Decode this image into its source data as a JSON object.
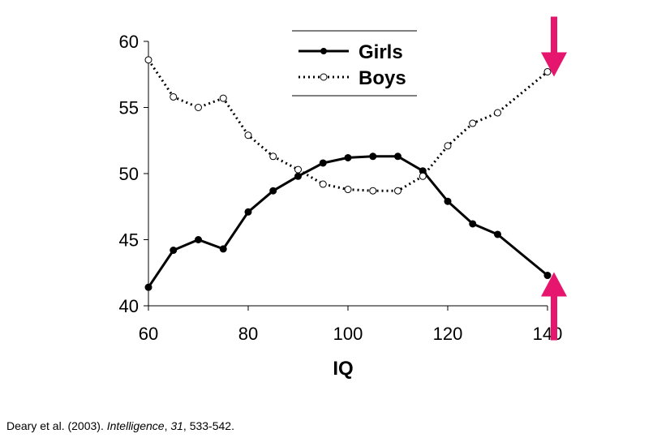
{
  "chart_data": {
    "type": "line",
    "xlabel": "IQ",
    "ylabel": "",
    "xlim": [
      60,
      140
    ],
    "ylim": [
      40,
      60
    ],
    "xticks": [
      60,
      80,
      100,
      120,
      140
    ],
    "yticks": [
      40,
      45,
      50,
      55,
      60
    ],
    "x": [
      60,
      65,
      70,
      75,
      80,
      85,
      90,
      95,
      100,
      105,
      110,
      115,
      120,
      125,
      130,
      140
    ],
    "series": [
      {
        "name": "Girls",
        "color": "#000000",
        "style": "solid-filled-markers",
        "values": [
          41.4,
          44.2,
          45.0,
          44.3,
          47.1,
          48.7,
          49.8,
          50.8,
          51.2,
          51.3,
          51.3,
          50.2,
          47.9,
          46.2,
          45.4,
          42.3
        ]
      },
      {
        "name": "Boys",
        "color": "#000000",
        "style": "dotted-open-markers",
        "values": [
          58.6,
          55.8,
          55.0,
          55.7,
          52.9,
          51.3,
          50.3,
          49.2,
          48.8,
          48.7,
          48.7,
          49.8,
          52.1,
          53.8,
          54.6,
          57.7
        ]
      }
    ],
    "legend": {
      "position": "top-center",
      "entries": [
        "Girls",
        "Boys"
      ]
    },
    "annotations": [
      {
        "type": "arrow",
        "direction": "down",
        "color": "#e6156e",
        "target_x": 140,
        "target_series": "Boys"
      },
      {
        "type": "arrow",
        "direction": "up",
        "color": "#e6156e",
        "target_x": 140,
        "target_series": "Girls"
      }
    ],
    "grid": false
  },
  "citation": {
    "authors_year": "Deary et al. (2003). ",
    "journal": "Intelligence",
    "sep1": ", ",
    "volume": "31",
    "pages": ", 533-542."
  }
}
